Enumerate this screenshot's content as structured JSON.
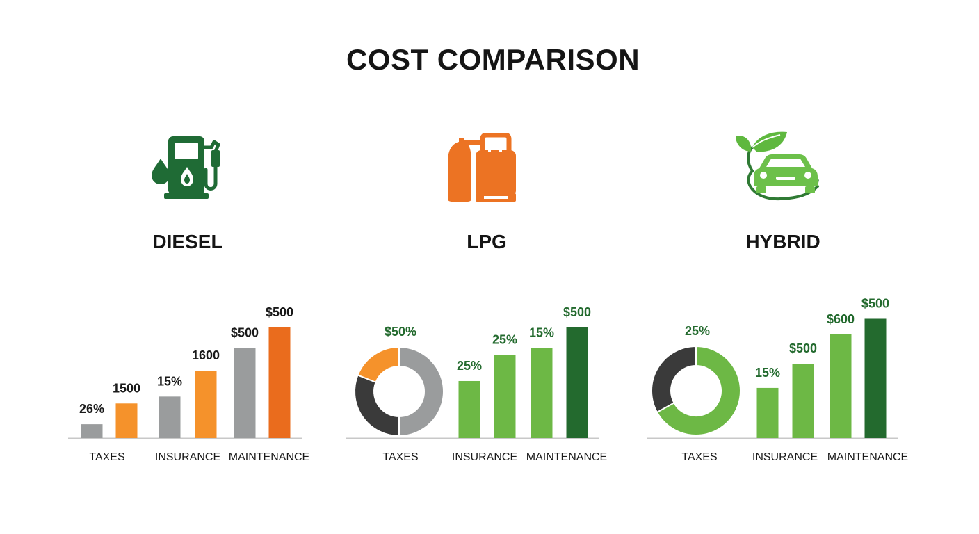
{
  "title": "COST COMPARISON",
  "colors": {
    "gray": "#9a9c9d",
    "dark": "#3a3a3a",
    "orange_light": "#f5922b",
    "orange_dark": "#ea6c1d",
    "green_light": "#6db845",
    "green_dark": "#236a2e",
    "diesel_icon": "#1f6b35",
    "lpg_icon": "#ec7323",
    "hybrid_icon": "#4aa637"
  },
  "panels": [
    {
      "name": "DIESEL",
      "icon": "fuel-pump-icon"
    },
    {
      "name": "LPG",
      "icon": "gas-cylinder-icon"
    },
    {
      "name": "HYBRID",
      "icon": "eco-car-icon"
    }
  ],
  "chart_data": [
    {
      "type": "bar",
      "title": "DIESEL",
      "categories": [
        "TAXES",
        "INSURANCE",
        "MAINTENANCE"
      ],
      "series": [
        {
          "values": [
            8,
            24,
            52
          ],
          "labels": [
            "26%",
            "15%",
            "$500"
          ]
        },
        {
          "values": [
            20,
            39,
            64
          ],
          "labels": [
            "1500",
            "1600",
            "$500"
          ]
        }
      ],
      "ylim": [
        0,
        70
      ],
      "grid": false
    },
    {
      "type": "pie",
      "title": "LPG",
      "category": "TAXES",
      "label": "$50%",
      "slices": [
        {
          "value": 50
        },
        {
          "value": 31
        },
        {
          "value": 19
        }
      ]
    },
    {
      "type": "bar",
      "title": "LPG",
      "categories": [
        "INSURANCE",
        "MAINTENANCE"
      ],
      "series": [
        {
          "values": [
            33,
            52
          ],
          "labels": [
            "25%",
            "15%"
          ]
        },
        {
          "values": [
            48,
            64
          ],
          "labels": [
            "25%",
            "$500"
          ]
        }
      ],
      "ylim": [
        0,
        70
      ],
      "grid": false
    },
    {
      "type": "pie",
      "title": "HYBRID",
      "category": "TAXES",
      "label": "25%",
      "slices": [
        {
          "value": 67
        },
        {
          "value": 33
        }
      ]
    },
    {
      "type": "bar",
      "title": "HYBRID",
      "categories": [
        "INSURANCE",
        "MAINTENANCE"
      ],
      "series": [
        {
          "values": [
            29,
            60
          ],
          "labels": [
            "15%",
            "$600"
          ]
        },
        {
          "values": [
            43,
            69
          ],
          "labels": [
            "$500",
            "$500"
          ]
        }
      ],
      "ylim": [
        0,
        70
      ],
      "grid": false
    }
  ]
}
